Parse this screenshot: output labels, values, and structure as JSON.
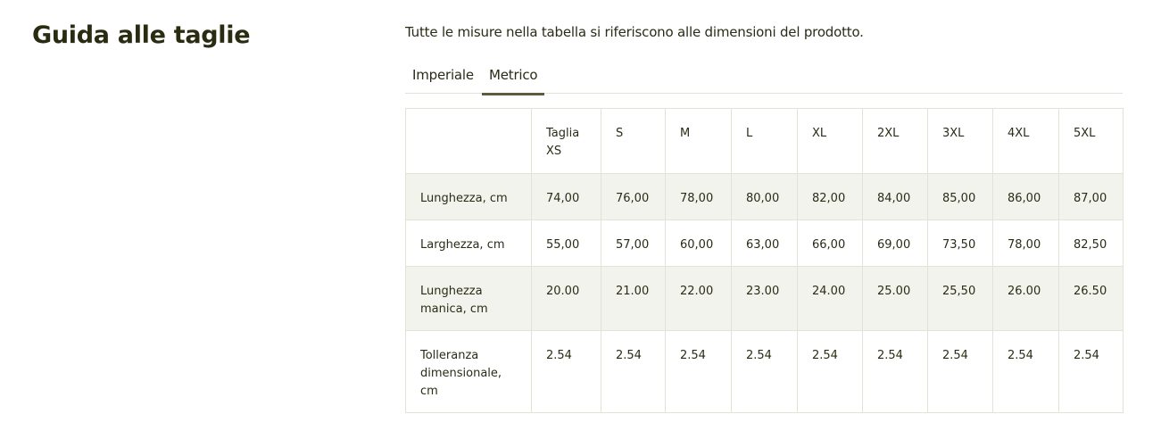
{
  "title": "Guida alle taglie",
  "intro": "Tutte le misure nella tabella si riferiscono alle dimensioni del prodotto.",
  "tabs": [
    {
      "label": "Imperiale",
      "active": false
    },
    {
      "label": "Metrico",
      "active": true
    }
  ],
  "table": {
    "headers": [
      "",
      "Taglia XS",
      "S",
      "M",
      "L",
      "XL",
      "2XL",
      "3XL",
      "4XL",
      "5XL"
    ],
    "rows": [
      {
        "label": "Lunghezza, cm",
        "values": [
          "74,00",
          "76,00",
          "78,00",
          "80,00",
          "82,00",
          "84,00",
          "85,00",
          "86,00",
          "87,00"
        ]
      },
      {
        "label": "Larghezza, cm",
        "values": [
          "55,00",
          "57,00",
          "60,00",
          "63,00",
          "66,00",
          "69,00",
          "73,50",
          "78,00",
          "82,50"
        ]
      },
      {
        "label": "Lunghezza manica, cm",
        "values": [
          "20.00",
          "21.00",
          "22.00",
          "23.00",
          "24.00",
          "25.00",
          "25,50",
          "26.00",
          "26.50"
        ]
      },
      {
        "label": "Tolleranza dimensionale, cm",
        "values": [
          "2.54",
          "2.54",
          "2.54",
          "2.54",
          "2.54",
          "2.54",
          "2.54",
          "2.54",
          "2.54"
        ]
      }
    ]
  },
  "colors": {
    "text": "#2b2b16",
    "shade": "#f3f3ee",
    "border": "#e3e2d6",
    "active_tab": "#5e5c3d"
  }
}
